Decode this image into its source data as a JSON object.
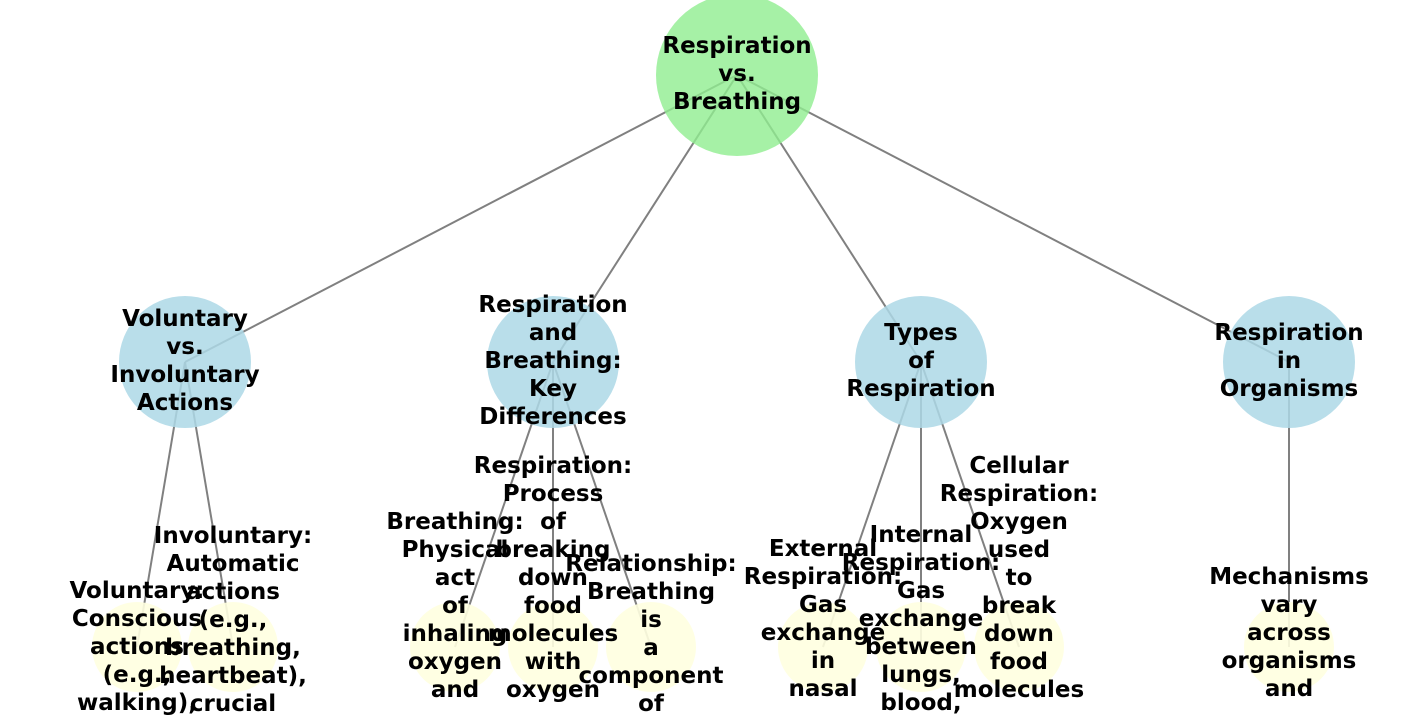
{
  "diagram": {
    "colors": {
      "edge": "#808080",
      "root_fill": "#90ee90",
      "category_fill": "#add8e6",
      "leaf_fill": "#ffffe0"
    },
    "root": {
      "id": "root",
      "label": "Respiration vs. Breathing",
      "label_lines": [
        "Respiration",
        "vs.",
        "Breathing"
      ]
    },
    "categories": [
      {
        "id": "voluntary",
        "label": "Voluntary vs. Involuntary Actions",
        "label_lines": [
          "Voluntary",
          "vs.",
          "Involuntary",
          "Actions"
        ]
      },
      {
        "id": "key-differences",
        "label": "Respiration and Breathing: Key Differences",
        "label_lines": [
          "Respiration",
          "and",
          "Breathing:",
          "Key",
          "Differences"
        ]
      },
      {
        "id": "types",
        "label": "Types of Respiration",
        "label_lines": [
          "Types",
          "of",
          "Respiration"
        ]
      },
      {
        "id": "organisms",
        "label": "Respiration in Organisms",
        "label_lines": [
          "Respiration",
          "in",
          "Organisms"
        ]
      }
    ],
    "leaves": [
      {
        "id": "voluntary-leaf",
        "parent": "voluntary",
        "label_lines": [
          "Voluntary:",
          "Conscious",
          "actions",
          "(e.g.,",
          "walking),"
        ]
      },
      {
        "id": "involuntary-leaf",
        "parent": "voluntary",
        "label_lines": [
          "Involuntary:",
          "Automatic",
          "actions",
          "(e.g.,",
          "breathing,",
          "heartbeat),",
          "crucial"
        ]
      },
      {
        "id": "breathing-leaf",
        "parent": "key-differences",
        "label_lines": [
          "Breathing:",
          "Physical",
          "act",
          "of",
          "inhaling",
          "oxygen",
          "and"
        ]
      },
      {
        "id": "respiration-process-leaf",
        "parent": "key-differences",
        "label_lines": [
          "Respiration:",
          "Process",
          "of",
          "breaking",
          "down",
          "food",
          "molecules",
          "with",
          "oxygen"
        ]
      },
      {
        "id": "relationship-leaf",
        "parent": "key-differences",
        "label_lines": [
          "Relationship:",
          "Breathing",
          "is",
          "a",
          "component",
          "of"
        ]
      },
      {
        "id": "external-leaf",
        "parent": "types",
        "label_lines": [
          "External",
          "Respiration:",
          "Gas",
          "exchange",
          "in",
          "nasal"
        ]
      },
      {
        "id": "internal-leaf",
        "parent": "types",
        "label_lines": [
          "Internal",
          "Respiration:",
          "Gas",
          "exchange",
          "between",
          "lungs,",
          "blood,"
        ]
      },
      {
        "id": "cellular-leaf",
        "parent": "types",
        "label_lines": [
          "Cellular",
          "Respiration:",
          "Oxygen",
          "used",
          "to",
          "break",
          "down",
          "food",
          "molecules"
        ]
      },
      {
        "id": "mechanisms-leaf",
        "parent": "organisms",
        "label_lines": [
          "Mechanisms",
          "vary",
          "across",
          "organisms",
          "and"
        ]
      }
    ]
  }
}
